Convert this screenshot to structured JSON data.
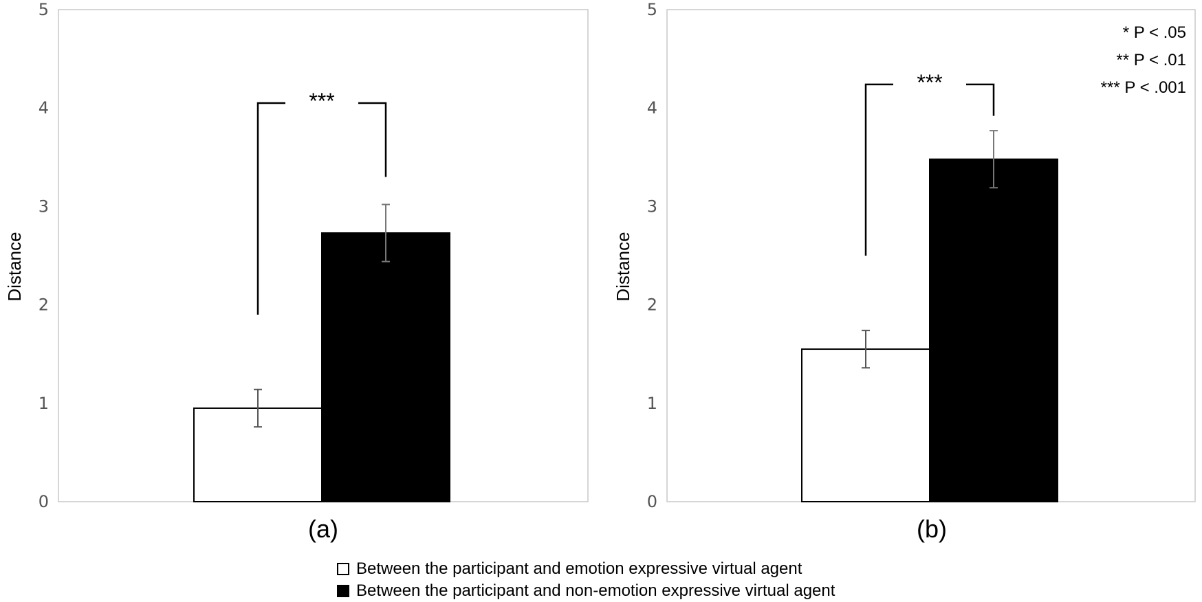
{
  "chart_data": [
    {
      "type": "bar",
      "panel_label": "(a)",
      "ylabel": "Distance",
      "ylim": [
        0,
        5
      ],
      "yticks": [
        "0",
        "1",
        "2",
        "3",
        "4",
        "5"
      ],
      "series": [
        {
          "name": "Between the participant and emotion expressive virtual agent",
          "value": 0.95,
          "error": 0.19,
          "color": "#ffffff"
        },
        {
          "name": "Between the participant and non-emotion expressive virtual agent",
          "value": 2.73,
          "error": 0.29,
          "color": "#000000"
        }
      ],
      "significance": {
        "label": "***",
        "left_end": 1.9,
        "right_end": 3.3,
        "top": 4.05
      },
      "grid": false
    },
    {
      "type": "bar",
      "panel_label": "(b)",
      "ylabel": "Distance",
      "ylim": [
        0,
        5
      ],
      "yticks": [
        "0",
        "1",
        "2",
        "3",
        "4",
        "5"
      ],
      "series": [
        {
          "name": "Between the participant and emotion expressive virtual agent",
          "value": 1.55,
          "error": 0.19,
          "color": "#ffffff"
        },
        {
          "name": "Between the participant and non-emotion expressive virtual agent",
          "value": 3.48,
          "error": 0.29,
          "color": "#000000"
        }
      ],
      "significance": {
        "label": "***",
        "left_end": 2.5,
        "right_end": 3.92,
        "top": 4.24
      },
      "p_notes": [
        "* P < .05",
        "** P < .01",
        "*** P < .001"
      ],
      "grid": false
    }
  ],
  "legend": {
    "items": [
      {
        "label": "Between the participant and emotion expressive virtual agent",
        "color": "#ffffff"
      },
      {
        "label": "Between the participant and non-emotion expressive virtual agent",
        "color": "#000000"
      }
    ]
  }
}
